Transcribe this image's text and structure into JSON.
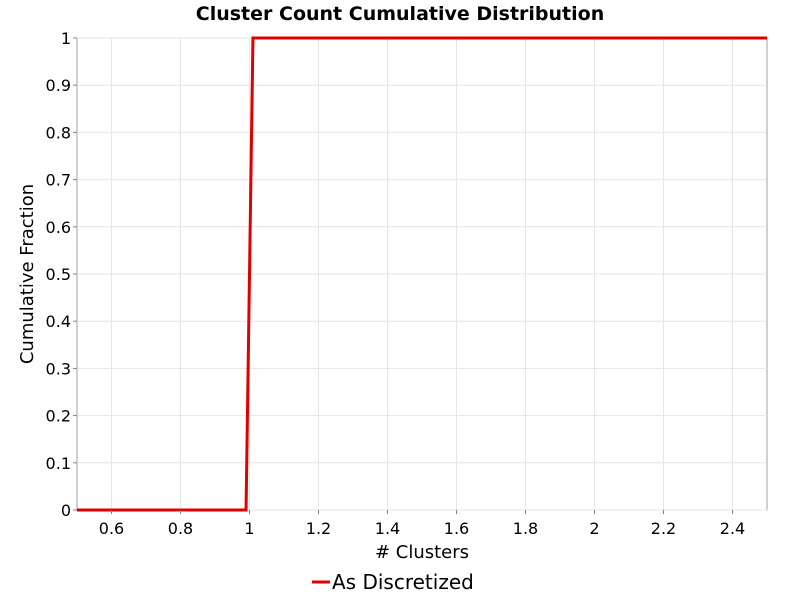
{
  "chart_data": {
    "type": "line",
    "title": "Cluster Count Cumulative Distribution",
    "xlabel": "# Clusters",
    "ylabel": "Cumulative Fraction",
    "xlim": [
      0.5,
      2.5
    ],
    "ylim": [
      0,
      1
    ],
    "x_ticks": [
      0.6,
      0.8,
      1,
      1.2,
      1.4,
      1.6,
      1.8,
      2,
      2.2,
      2.4
    ],
    "x_tick_labels": [
      "0.6",
      "0.8",
      "1",
      "1.2",
      "1.4",
      "1.6",
      "1.8",
      "2",
      "2.2",
      "2.4"
    ],
    "y_ticks": [
      0,
      0.1,
      0.2,
      0.3,
      0.4,
      0.5,
      0.6,
      0.7,
      0.8,
      0.9,
      1
    ],
    "y_tick_labels": [
      "0",
      "0.1",
      "0.2",
      "0.3",
      "0.4",
      "0.5",
      "0.6",
      "0.7",
      "0.8",
      "0.9",
      "1"
    ],
    "grid": true,
    "legend_position": "bottom",
    "series": [
      {
        "name": "As Discretized",
        "color": "#e00000",
        "x": [
          0.5,
          0.99,
          1.01,
          2.5
        ],
        "y": [
          0,
          0,
          1,
          1
        ]
      }
    ]
  }
}
